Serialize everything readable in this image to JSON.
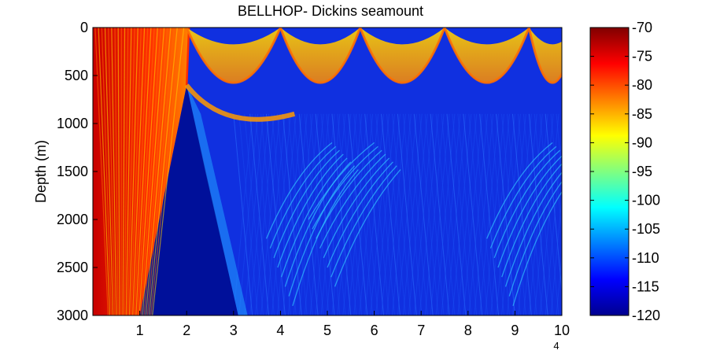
{
  "chart_data": {
    "type": "heatmap",
    "title": "BELLHOP- Dickins seamount",
    "xlabel": "",
    "ylabel": "Depth (m)",
    "x_exponent_label": "4",
    "x_ticks": [
      1,
      2,
      3,
      4,
      5,
      6,
      7,
      8,
      9,
      10
    ],
    "xlim": [
      0,
      10
    ],
    "y_ticks": [
      0,
      500,
      1000,
      1500,
      2000,
      2500,
      3000
    ],
    "ylim": [
      0,
      3000
    ],
    "y_reversed": true,
    "colorbar": {
      "ticks": [
        -70,
        -75,
        -80,
        -85,
        -90,
        -95,
        -100,
        -105,
        -110,
        -115,
        -120
      ],
      "range": [
        -120,
        -70
      ],
      "colormap": "jet"
    },
    "seamount": {
      "base_left_x": 1.0,
      "peak_x": 2.0,
      "peak_depth": 600,
      "base_right_x": 3.1,
      "base_depth": 3000
    },
    "features": {
      "surface_convergence_x": [
        4.0,
        5.7,
        7.5,
        9.3
      ],
      "high_level_surface_layer_depth_max": 1000
    }
  }
}
